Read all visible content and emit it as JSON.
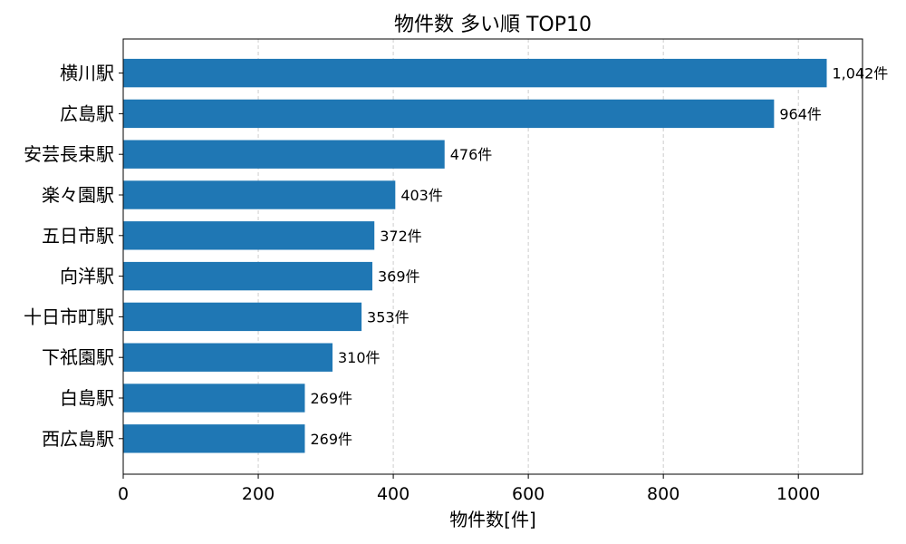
{
  "chart_data": {
    "type": "bar",
    "orientation": "horizontal",
    "title": "物件数 多い順 TOP10",
    "xlabel": "物件数[件]",
    "ylabel": "",
    "categories": [
      "横川駅",
      "広島駅",
      "安芸長束駅",
      "楽々園駅",
      "五日市駅",
      "向洋駅",
      "十日市町駅",
      "下祇園駅",
      "白島駅",
      "西広島駅"
    ],
    "values": [
      1042,
      964,
      476,
      403,
      372,
      369,
      353,
      310,
      269,
      269
    ],
    "value_labels": [
      "1,042件",
      "964件",
      "476件",
      "403件",
      "372件",
      "369件",
      "353件",
      "310件",
      "269件",
      "269件"
    ],
    "xlim": [
      0,
      1095
    ],
    "xticks": [
      0,
      200,
      400,
      600,
      800,
      1000
    ],
    "xtick_labels": [
      "0",
      "200",
      "400",
      "600",
      "800",
      "1000"
    ],
    "grid": "x-dashed",
    "bar_color": "#1f77b4",
    "grid_color": "#cccccc"
  }
}
